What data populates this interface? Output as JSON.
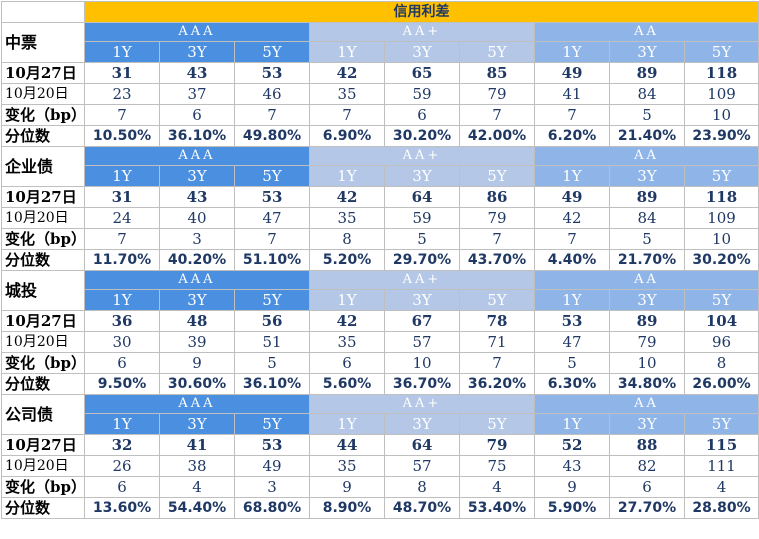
{
  "title": "信用利差",
  "ratings": [
    "AAA",
    "AA+",
    "AA"
  ],
  "tenors": [
    "1Y",
    "3Y",
    "5Y"
  ],
  "row_labels": {
    "current": "10月27日",
    "previous": "10月20日",
    "change": "变化（bp）",
    "percentile": "分位数"
  },
  "sections": [
    {
      "name": "中票",
      "current": [
        "31",
        "43",
        "53",
        "42",
        "65",
        "85",
        "49",
        "89",
        "118"
      ],
      "previous": [
        "23",
        "37",
        "46",
        "35",
        "59",
        "79",
        "41",
        "84",
        "109"
      ],
      "change": [
        "7",
        "6",
        "7",
        "7",
        "6",
        "7",
        "7",
        "5",
        "10"
      ],
      "percentile": [
        "10.50%",
        "36.10%",
        "49.80%",
        "6.90%",
        "30.20%",
        "42.00%",
        "6.20%",
        "21.40%",
        "23.90%"
      ]
    },
    {
      "name": "企业债",
      "current": [
        "31",
        "43",
        "53",
        "42",
        "64",
        "86",
        "49",
        "89",
        "118"
      ],
      "previous": [
        "24",
        "40",
        "47",
        "35",
        "59",
        "79",
        "42",
        "84",
        "109"
      ],
      "change": [
        "7",
        "3",
        "7",
        "8",
        "5",
        "7",
        "7",
        "5",
        "10"
      ],
      "percentile": [
        "11.70%",
        "40.20%",
        "51.10%",
        "5.20%",
        "29.70%",
        "43.70%",
        "4.40%",
        "21.70%",
        "30.20%"
      ]
    },
    {
      "name": "城投",
      "current": [
        "36",
        "48",
        "56",
        "42",
        "67",
        "78",
        "53",
        "89",
        "104"
      ],
      "previous": [
        "30",
        "39",
        "51",
        "35",
        "57",
        "71",
        "47",
        "79",
        "96"
      ],
      "change": [
        "6",
        "9",
        "5",
        "6",
        "10",
        "7",
        "5",
        "10",
        "8"
      ],
      "percentile": [
        "9.50%",
        "30.60%",
        "36.10%",
        "5.60%",
        "36.70%",
        "36.20%",
        "6.30%",
        "34.80%",
        "26.00%"
      ]
    },
    {
      "name": "公司债",
      "current": [
        "32",
        "41",
        "53",
        "44",
        "64",
        "79",
        "52",
        "88",
        "115"
      ],
      "previous": [
        "26",
        "38",
        "49",
        "35",
        "57",
        "75",
        "43",
        "82",
        "111"
      ],
      "change": [
        "6",
        "4",
        "3",
        "9",
        "8",
        "4",
        "9",
        "6",
        "4"
      ],
      "percentile": [
        "13.60%",
        "54.40%",
        "68.80%",
        "8.90%",
        "48.70%",
        "53.40%",
        "5.90%",
        "27.70%",
        "28.80%"
      ]
    }
  ]
}
